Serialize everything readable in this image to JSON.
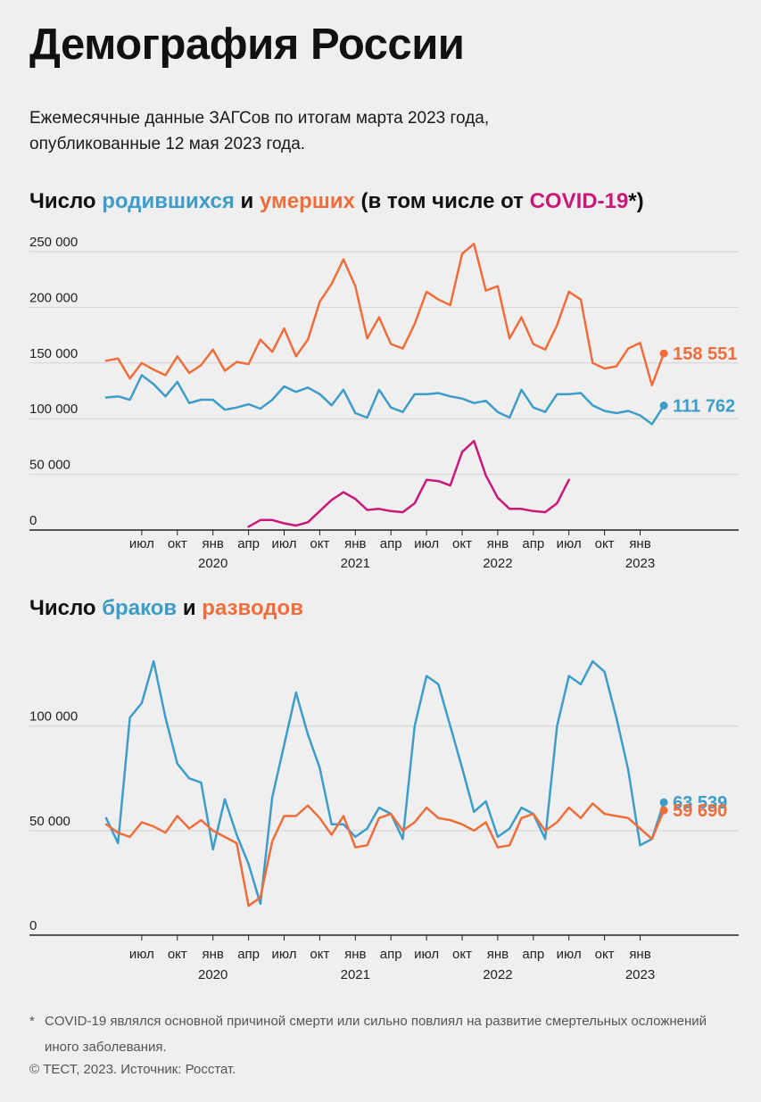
{
  "header": {
    "title": "Демография России",
    "subtitle_line1": "Ежемесячные данные ЗАГСов по итогам марта 2023 года,",
    "subtitle_line2": "опубликованные 12 мая 2023 года."
  },
  "chart1_title": {
    "part1": "Число ",
    "births": "родившихся",
    "part2": " и ",
    "deaths": "умерших",
    "part3": " (в том числе от ",
    "covid": "COVID-19",
    "part4": "*)"
  },
  "chart2_title": {
    "part1": "Число ",
    "marriages": "браков",
    "part2": " и ",
    "divorces": "разводов"
  },
  "colors": {
    "blue": "#3d9dc8",
    "orange": "#ef6d3b",
    "covid": "#c8197a",
    "axis": "#222222",
    "grid": "#d2d2d2",
    "tick_text": "#222222"
  },
  "chart_data": [
    {
      "type": "line",
      "x_start": "2019-04",
      "x_label_months": [
        "июл",
        "окт",
        "янв",
        "апр",
        "июл",
        "окт",
        "янв",
        "апр",
        "июл",
        "окт",
        "янв",
        "апр",
        "июл",
        "окт",
        "янв"
      ],
      "x_label_month_dates": [
        "2019-07",
        "2019-10",
        "2020-01",
        "2020-04",
        "2020-07",
        "2020-10",
        "2021-01",
        "2021-04",
        "2021-07",
        "2021-10",
        "2022-01",
        "2022-04",
        "2022-07",
        "2022-10",
        "2023-01"
      ],
      "x_label_years": [
        "2020",
        "2021",
        "2022",
        "2023"
      ],
      "x_label_year_dates": [
        "2020-01",
        "2021-01",
        "2022-01",
        "2023-01"
      ],
      "ylim": [
        0,
        250000
      ],
      "y_ticks": [
        0,
        50000,
        100000,
        150000,
        200000,
        250000
      ],
      "y_tick_labels": [
        "0",
        "50 000",
        "100 000",
        "150 000",
        "200 000",
        "250 000"
      ],
      "grid": true,
      "series": [
        {
          "name": "умерших",
          "color_key": "orange",
          "start": "2019-04",
          "values": [
            152000,
            154000,
            136000,
            150000,
            144000,
            139000,
            156000,
            141000,
            148000,
            162000,
            143000,
            151000,
            149000,
            171000,
            160000,
            181000,
            156000,
            171000,
            205000,
            221000,
            243000,
            219000,
            172000,
            191000,
            167000,
            163000,
            185000,
            214000,
            207000,
            202000,
            248000,
            257000,
            215000,
            219000,
            172000,
            191000,
            167000,
            162000,
            184000,
            214000,
            207000,
            150000,
            145000,
            147000,
            163000,
            168000,
            130000,
            158551
          ],
          "end_label": "158 551"
        },
        {
          "name": "родившихся",
          "color_key": "blue",
          "start": "2019-04",
          "values": [
            119000,
            120000,
            117000,
            139000,
            131000,
            120000,
            133000,
            114000,
            117000,
            117000,
            108000,
            110000,
            113000,
            109000,
            117000,
            129000,
            124000,
            128000,
            122000,
            112000,
            126000,
            105000,
            101000,
            126000,
            110000,
            106000,
            122000,
            122000,
            123000,
            120000,
            118000,
            114000,
            116000,
            106000,
            101000,
            126000,
            110000,
            106000,
            122000,
            122000,
            123000,
            112000,
            107000,
            105000,
            107000,
            103000,
            95000,
            111762
          ],
          "end_label": "111 762"
        },
        {
          "name": "COVID-19",
          "color_key": "covid",
          "start": "2020-04",
          "values": [
            3000,
            9000,
            9000,
            6000,
            4000,
            7000,
            17000,
            27000,
            34000,
            28000,
            18000,
            19000,
            17000,
            16000,
            24000,
            45000,
            44000,
            40000,
            70000,
            80000,
            49000,
            29000,
            19000,
            19000,
            17000,
            16000,
            24000,
            45000
          ]
        }
      ]
    },
    {
      "type": "line",
      "x_start": "2019-04",
      "x_label_months": [
        "июл",
        "окт",
        "янв",
        "апр",
        "июл",
        "окт",
        "янв",
        "апр",
        "июл",
        "окт",
        "янв",
        "апр",
        "июл",
        "окт",
        "янв"
      ],
      "x_label_month_dates": [
        "2019-07",
        "2019-10",
        "2020-01",
        "2020-04",
        "2020-07",
        "2020-10",
        "2021-01",
        "2021-04",
        "2021-07",
        "2021-10",
        "2022-01",
        "2022-04",
        "2022-07",
        "2022-10",
        "2023-01"
      ],
      "x_label_years": [
        "2020",
        "2021",
        "2022",
        "2023"
      ],
      "x_label_year_dates": [
        "2020-01",
        "2021-01",
        "2022-01",
        "2023-01"
      ],
      "ylim": [
        0,
        140000
      ],
      "y_ticks": [
        0,
        50000,
        100000
      ],
      "y_tick_labels": [
        "0",
        "50 000",
        "100 000"
      ],
      "grid": true,
      "series": [
        {
          "name": "браков",
          "color_key": "blue",
          "start": "2019-04",
          "values": [
            56000,
            44000,
            104000,
            111000,
            131000,
            104000,
            82000,
            75000,
            73000,
            41000,
            65000,
            48000,
            34000,
            15000,
            66000,
            91000,
            116000,
            96000,
            80000,
            53000,
            53000,
            47000,
            51000,
            61000,
            58000,
            46000,
            100000,
            124000,
            120000,
            100000,
            80000,
            59000,
            64000,
            47000,
            51000,
            61000,
            58000,
            46000,
            100000,
            124000,
            120000,
            131000,
            126000,
            104000,
            79000,
            43000,
            46000,
            63539
          ],
          "end_label": "63 539"
        },
        {
          "name": "разводов",
          "color_key": "orange",
          "start": "2019-04",
          "values": [
            53000,
            49000,
            47000,
            54000,
            52000,
            49000,
            57000,
            51000,
            55000,
            50000,
            47000,
            44000,
            14000,
            18000,
            45000,
            57000,
            57000,
            62000,
            56000,
            48000,
            57000,
            42000,
            43000,
            56000,
            58000,
            50000,
            54000,
            61000,
            56000,
            55000,
            53000,
            50000,
            54000,
            42000,
            43000,
            56000,
            58000,
            50000,
            54000,
            61000,
            56000,
            63000,
            58000,
            57000,
            56000,
            51000,
            46000,
            59690
          ],
          "end_label": "59 690"
        }
      ]
    }
  ],
  "footnote": {
    "star": "*",
    "text": "COVID-19 являлся основной причиной смерти или сильно повлиял на развитие смертельных осложнений иного заболевания."
  },
  "credit": "© ТЕСТ, 2023. Источник: Росстат."
}
